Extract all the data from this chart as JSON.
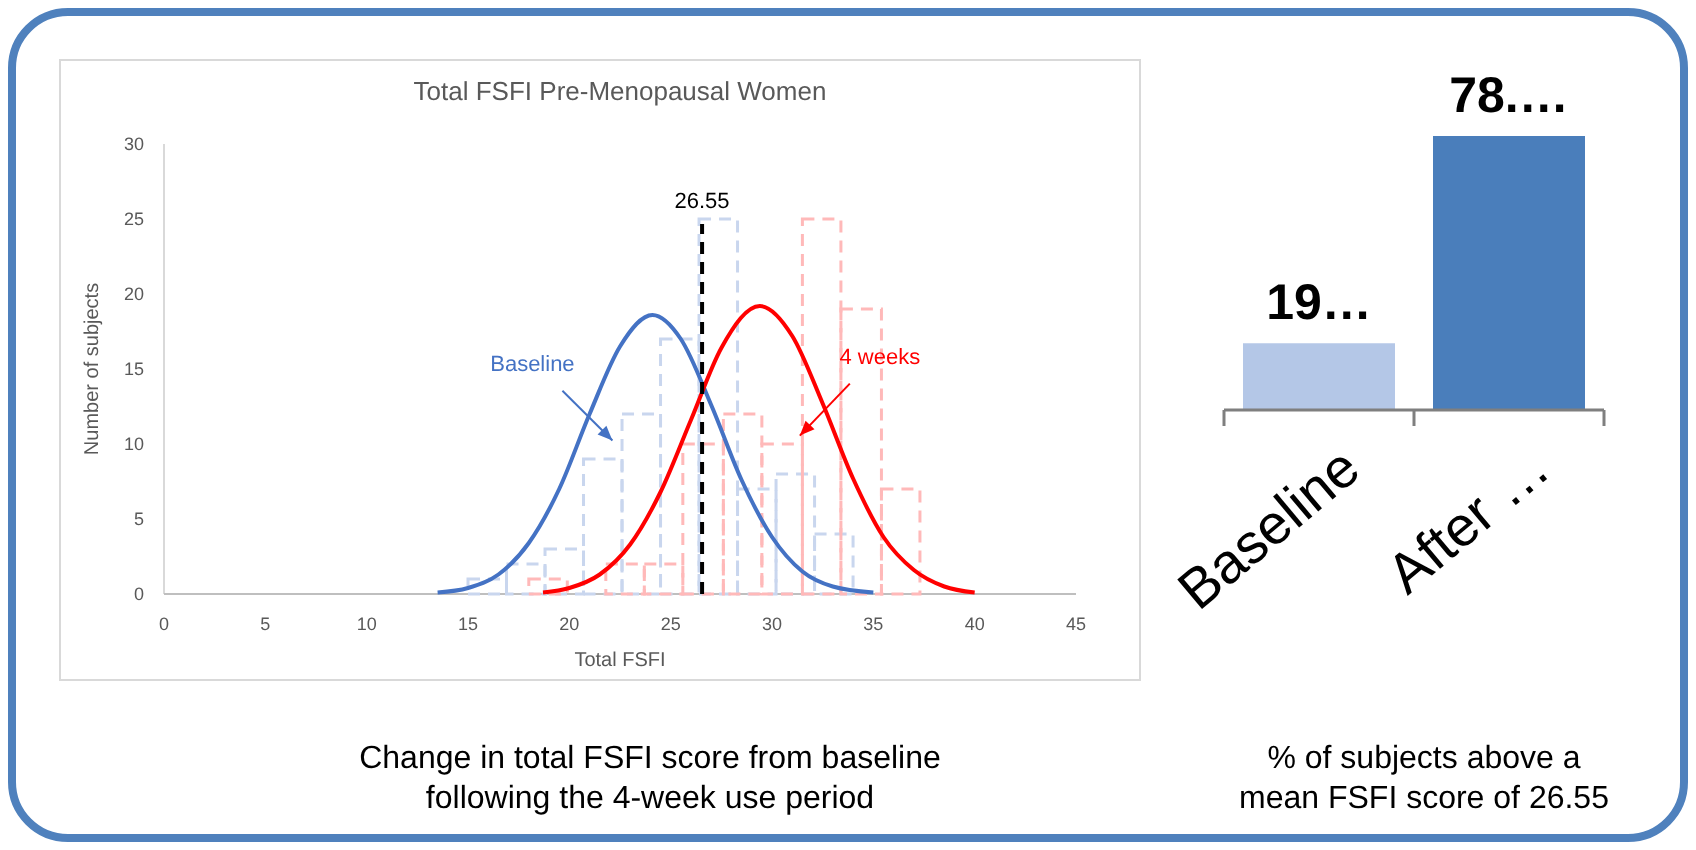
{
  "chart_data": [
    {
      "type": "histogram",
      "title": "Total FSFI Pre-Menopausal Women",
      "xlabel": "Total FSFI",
      "ylabel": "Number of subjects",
      "xlim": [
        0,
        45
      ],
      "xticks": [
        0,
        5,
        10,
        15,
        20,
        25,
        30,
        35,
        40,
        45
      ],
      "ylim": [
        0,
        30
      ],
      "yticks": [
        0,
        5,
        10,
        15,
        20,
        25,
        30
      ],
      "grid": false,
      "series": [
        {
          "type": "histogram",
          "color": "#c9d6ee",
          "line_style": "dashed",
          "bins": [
            15,
            16.9,
            18.8,
            20.7,
            22.6,
            24.5,
            26.4,
            28.3,
            30.2,
            32.1,
            34.0
          ],
          "values": [
            1,
            2,
            3,
            9,
            12,
            17,
            25,
            7,
            8,
            4
          ]
        },
        {
          "type": "histogram",
          "color": "#ffb9b9",
          "line_style": "dashed",
          "bins": [
            18.0,
            19.9,
            21.8,
            23.7,
            25.6,
            27.6,
            29.5,
            31.5,
            33.4,
            35.4,
            37.3
          ],
          "values": [
            1,
            0,
            2,
            2,
            10,
            12,
            10,
            25,
            19,
            7
          ]
        },
        {
          "type": "line",
          "name": "Baseline",
          "color": "#4472c4",
          "line_style": "solid",
          "marker": "none",
          "x": [
            13.5,
            15,
            16.5,
            18,
            19.5,
            21,
            22.5,
            24.1,
            25.5,
            27,
            28.5,
            30,
            31.5,
            33,
            35
          ],
          "values": [
            0.1,
            0.4,
            1.3,
            3.4,
            7.0,
            12.0,
            16.5,
            18.6,
            17.0,
            12.6,
            7.6,
            3.8,
            1.5,
            0.5,
            0.1
          ]
        },
        {
          "type": "line",
          "name": "4 weeks",
          "color": "#ff0000",
          "line_style": "solid",
          "marker": "none",
          "x": [
            18.7,
            20,
            21.5,
            23,
            24.5,
            26,
            27.5,
            29.4,
            31,
            32.5,
            34,
            35.5,
            37,
            38.5,
            40
          ],
          "values": [
            0.1,
            0.4,
            1.3,
            3.3,
            6.8,
            11.6,
            16.4,
            19.2,
            17.2,
            12.7,
            7.7,
            3.8,
            1.6,
            0.5,
            0.1
          ]
        }
      ],
      "ref_lines": [
        {
          "axis": "x",
          "value": 26.55,
          "label": "26.55",
          "color": "#000000",
          "line_style": "dashed"
        }
      ],
      "annotations": [
        "Change in total FSFI score from baseline following the 4-week use period"
      ]
    },
    {
      "type": "bar",
      "categories": [
        "Baseline",
        "After …"
      ],
      "values": [
        19,
        78
      ],
      "colors": [
        "#b4c7e7",
        "#4a7ebb"
      ],
      "value_labels": [
        "19…",
        "78.…"
      ],
      "xlabel": "% of subjects above a mean FSFI score of 26.55"
    }
  ]
}
